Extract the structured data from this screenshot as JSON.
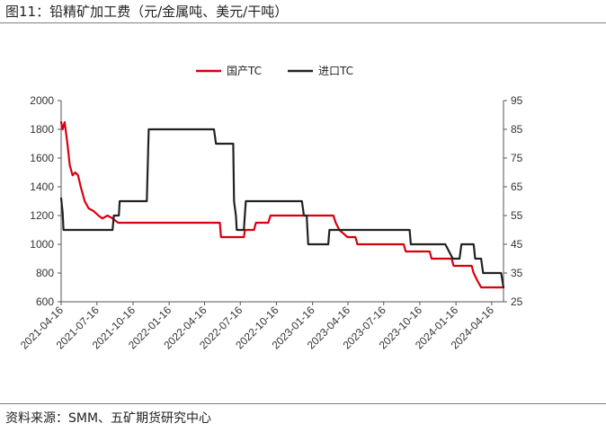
{
  "figure": {
    "title": "图11：铅精矿加工费（元/金属吨、美元/干吨）",
    "source": "资料来源：SMM、五矿期货研究中心"
  },
  "chart_data": {
    "type": "line",
    "title": "图11：铅精矿加工费（元/金属吨、美元/干吨）",
    "xlabel": "",
    "ylabel_left": "",
    "ylabel_right": "",
    "x_range": [
      "2021-04-16",
      "2024-05-16"
    ],
    "x_ticks": [
      "2021-04-16",
      "2021-07-16",
      "2021-10-16",
      "2022-01-16",
      "2022-04-16",
      "2022-07-16",
      "2022-10-16",
      "2023-01-16",
      "2023-04-16",
      "2023-07-16",
      "2023-10-16",
      "2024-01-16",
      "2024-04-16"
    ],
    "y_left": {
      "range": [
        600,
        2000
      ],
      "ticks": [
        600,
        800,
        1000,
        1200,
        1400,
        1600,
        1800,
        2000
      ]
    },
    "y_right": {
      "range": [
        25,
        95
      ],
      "ticks": [
        25,
        35,
        45,
        55,
        65,
        75,
        85,
        95
      ]
    },
    "grid": false,
    "legend_position": "top-center",
    "series": [
      {
        "name": "国产TC",
        "axis": "left",
        "color": "#d7000f",
        "points": [
          [
            "2021-04-16",
            1850
          ],
          [
            "2021-04-20",
            1800
          ],
          [
            "2021-04-25",
            1850
          ],
          [
            "2021-05-02",
            1700
          ],
          [
            "2021-05-08",
            1550
          ],
          [
            "2021-05-15",
            1480
          ],
          [
            "2021-05-22",
            1500
          ],
          [
            "2021-05-29",
            1480
          ],
          [
            "2021-06-05",
            1400
          ],
          [
            "2021-06-10",
            1350
          ],
          [
            "2021-06-15",
            1300
          ],
          [
            "2021-06-25",
            1250
          ],
          [
            "2021-07-08",
            1230
          ],
          [
            "2021-07-20",
            1200
          ],
          [
            "2021-07-30",
            1180
          ],
          [
            "2021-08-12",
            1200
          ],
          [
            "2021-08-25",
            1180
          ],
          [
            "2021-09-08",
            1150
          ],
          [
            "2021-10-16",
            1150
          ],
          [
            "2022-01-16",
            1150
          ],
          [
            "2022-04-16",
            1150
          ],
          [
            "2022-05-25",
            1150
          ],
          [
            "2022-05-28",
            1050
          ],
          [
            "2022-07-16",
            1050
          ],
          [
            "2022-07-25",
            1050
          ],
          [
            "2022-07-28",
            1100
          ],
          [
            "2022-08-20",
            1100
          ],
          [
            "2022-08-25",
            1150
          ],
          [
            "2022-09-25",
            1150
          ],
          [
            "2022-10-01",
            1200
          ],
          [
            "2022-12-10",
            1200
          ],
          [
            "2023-01-16",
            1200
          ],
          [
            "2023-03-10",
            1200
          ],
          [
            "2023-03-16",
            1150
          ],
          [
            "2023-03-25",
            1100
          ],
          [
            "2023-04-15",
            1050
          ],
          [
            "2023-05-05",
            1050
          ],
          [
            "2023-05-10",
            1000
          ],
          [
            "2023-09-05",
            1000
          ],
          [
            "2023-09-10",
            950
          ],
          [
            "2023-11-10",
            950
          ],
          [
            "2023-11-15",
            900
          ],
          [
            "2024-01-05",
            900
          ],
          [
            "2024-01-10",
            850
          ],
          [
            "2024-02-20",
            850
          ],
          [
            "2024-02-25",
            850
          ],
          [
            "2024-03-01",
            800
          ],
          [
            "2024-03-10",
            750
          ],
          [
            "2024-03-20",
            700
          ],
          [
            "2024-05-16",
            700
          ]
        ]
      },
      {
        "name": "进口TC",
        "axis": "right",
        "color": "#222222",
        "points": [
          [
            "2021-04-16",
            61
          ],
          [
            "2021-04-20",
            56
          ],
          [
            "2021-04-22",
            50
          ],
          [
            "2021-08-25",
            50
          ],
          [
            "2021-08-28",
            55
          ],
          [
            "2021-09-10",
            55
          ],
          [
            "2021-09-12",
            60
          ],
          [
            "2021-11-20",
            60
          ],
          [
            "2021-11-25",
            85
          ],
          [
            "2022-05-10",
            85
          ],
          [
            "2022-05-15",
            80
          ],
          [
            "2022-06-28",
            80
          ],
          [
            "2022-06-30",
            60
          ],
          [
            "2022-07-05",
            55
          ],
          [
            "2022-07-07",
            50
          ],
          [
            "2022-07-25",
            50
          ],
          [
            "2022-07-30",
            60
          ],
          [
            "2022-12-20",
            60
          ],
          [
            "2022-12-25",
            55
          ],
          [
            "2023-01-01",
            55
          ],
          [
            "2023-01-05",
            45
          ],
          [
            "2023-02-25",
            45
          ],
          [
            "2023-02-28",
            50
          ],
          [
            "2023-09-20",
            50
          ],
          [
            "2023-09-23",
            45
          ],
          [
            "2023-12-10",
            45
          ],
          [
            "2023-12-20",
            45
          ],
          [
            "2024-01-08",
            40
          ],
          [
            "2024-01-25",
            40
          ],
          [
            "2024-01-30",
            45
          ],
          [
            "2024-03-01",
            45
          ],
          [
            "2024-03-05",
            40
          ],
          [
            "2024-03-20",
            40
          ],
          [
            "2024-03-25",
            35
          ],
          [
            "2024-05-10",
            35
          ],
          [
            "2024-05-16",
            30
          ]
        ]
      }
    ]
  }
}
